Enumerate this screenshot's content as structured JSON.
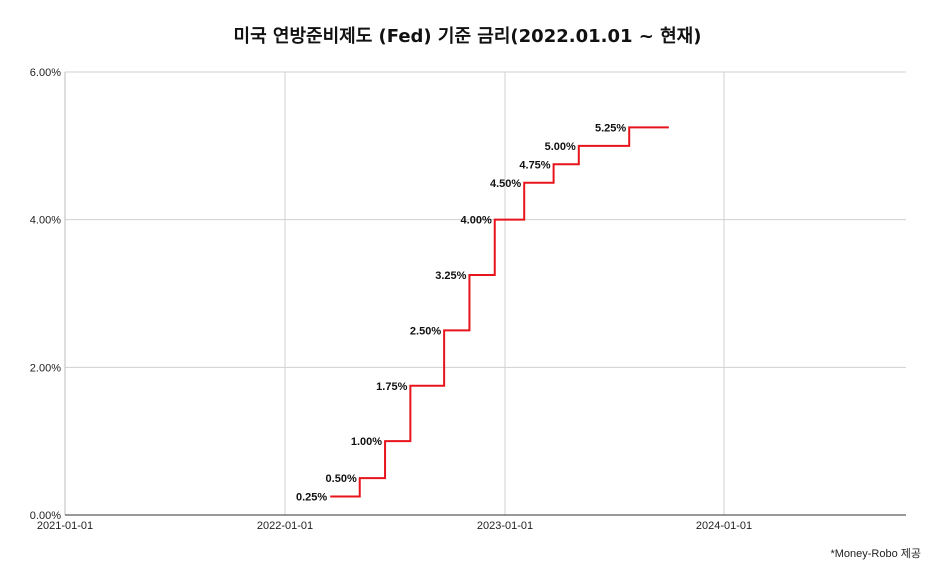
{
  "chart_data": {
    "type": "line",
    "title": "미국 연방준비제도 (Fed) 기준 금리(2022.01.01 ~ 현재)",
    "xlabel": "",
    "ylabel": "",
    "credit": "*Money-Robo 제공",
    "x_ticks": [
      "2021-01-01",
      "2022-01-01",
      "2023-01-01",
      "2024-01-01"
    ],
    "y_ticks": [
      "0.00%",
      "2.00%",
      "4.00%",
      "6.00%"
    ],
    "ylim": [
      0,
      6
    ],
    "xlim": [
      "2021-01-01",
      "2024-12-31"
    ],
    "grid": true,
    "line_color": "#e8141c",
    "series": [
      {
        "step": true,
        "points": [
          {
            "x": "2022-03-17",
            "y": 0.25,
            "label": "0.25%"
          },
          {
            "x": "2022-05-05",
            "y": 0.5,
            "label": "0.50%"
          },
          {
            "x": "2022-06-16",
            "y": 1.0,
            "label": "1.00%"
          },
          {
            "x": "2022-07-28",
            "y": 1.75,
            "label": "1.75%"
          },
          {
            "x": "2022-09-22",
            "y": 2.5,
            "label": "2.50%"
          },
          {
            "x": "2022-11-03",
            "y": 3.25,
            "label": "3.25%"
          },
          {
            "x": "2022-12-15",
            "y": 4.0,
            "label": "4.00%"
          },
          {
            "x": "2023-02-02",
            "y": 4.5,
            "label": "4.50%"
          },
          {
            "x": "2023-03-23",
            "y": 4.75,
            "label": "4.75%"
          },
          {
            "x": "2023-05-04",
            "y": 5.0,
            "label": "5.00%"
          },
          {
            "x": "2023-07-27",
            "y": 5.25,
            "label": "5.25%"
          }
        ],
        "end_x": "2023-10-01"
      }
    ]
  }
}
